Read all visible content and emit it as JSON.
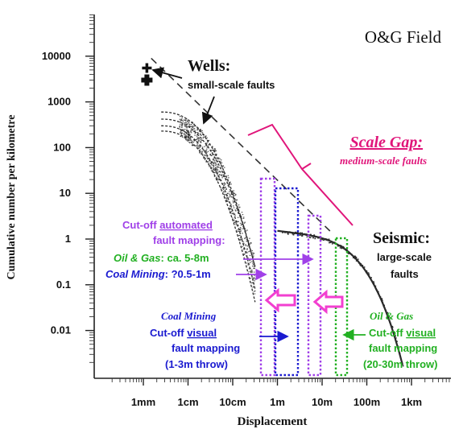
{
  "chart_data": {
    "type": "scatter",
    "title": "O&G Field",
    "xlabel": "Displacement",
    "ylabel": "Cumulative number per kilometre",
    "x_scale": "log",
    "y_scale": "log",
    "x_ticks": [
      {
        "label": "1mm",
        "value": 0.001
      },
      {
        "label": "1cm",
        "value": 0.01
      },
      {
        "label": "10cm",
        "value": 0.1
      },
      {
        "label": "1m",
        "value": 1
      },
      {
        "label": "10m",
        "value": 10
      },
      {
        "label": "100m",
        "value": 100
      },
      {
        "label": "1km",
        "value": 1000
      }
    ],
    "y_ticks": [
      {
        "label": "10000",
        "value": 10000
      },
      {
        "label": "1000",
        "value": 1000
      },
      {
        "label": "100",
        "value": 100
      },
      {
        "label": "10",
        "value": 10
      },
      {
        "label": "1",
        "value": 1
      },
      {
        "label": "0.1",
        "value": 0.1
      },
      {
        "label": "0.01",
        "value": 0.01
      }
    ],
    "wells_points": [
      {
        "x": 0.0012,
        "y": 5500
      },
      {
        "x": 0.0012,
        "y": 3000
      }
    ],
    "trend_line": [
      {
        "x": 0.0015,
        "y": 9000
      },
      {
        "x": 15,
        "y": 1.5
      }
    ],
    "annotations": {
      "wells_title": "Wells:",
      "wells_sub": "small-scale faults",
      "scale_gap_title": "Scale Gap:",
      "scale_gap_sub": "medium-scale faults",
      "seismic_title": "Seismic:",
      "seismic_sub1": "large-scale",
      "seismic_sub2": "faults",
      "auto_line1_pre": "Cut-off ",
      "auto_line1_u": "automated",
      "auto_line2": "fault mapping:",
      "auto_og_label": "Oil & Gas",
      "auto_og_value": ": ca. 5-8m",
      "auto_coal_label": "Coal Mining",
      "auto_coal_value": ": ?0.5-1m",
      "coal_title": "Coal Mining",
      "coal_line1_pre": "Cut-off ",
      "coal_line1_u": "visual",
      "coal_line2": "fault mapping",
      "coal_line3": "(1-3m throw)",
      "og_title": "Oil & Gas",
      "og_line1_pre": "Cut-off ",
      "og_line1_u": "visual",
      "og_line2": "fault mapping",
      "og_line3": "(20-30m throw)"
    },
    "colors": {
      "purple": "#a040e8",
      "blue": "#1a1ad0",
      "green": "#22b022",
      "magenta": "#e0157a",
      "arrow_fill": "#f23fd0",
      "data": "#2a2a2a"
    }
  }
}
